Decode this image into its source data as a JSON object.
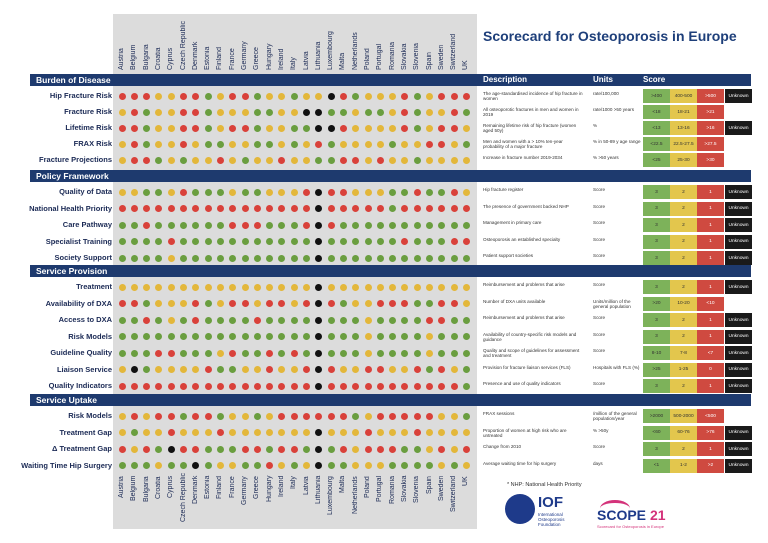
{
  "title": "Scorecard for Osteoporosis in Europe",
  "headers": {
    "description": "Description",
    "units": "Units",
    "score": "Score"
  },
  "countries": [
    "Austria",
    "Belgium",
    "Bulgaria",
    "Croatia",
    "Cyprus",
    "Czech Republic",
    "Denmark",
    "Estonia",
    "Finland",
    "France",
    "Germany",
    "Greece",
    "Hungary",
    "Ireland",
    "Italy",
    "Latvia",
    "Lithuania",
    "Luxembourg",
    "Malta",
    "Netherlands",
    "Poland",
    "Portugal",
    "Romania",
    "Slovakia",
    "Slovenia",
    "Spain",
    "Sweden",
    "Switzerland",
    "UK"
  ],
  "colors": {
    "green": "#6a9e3f",
    "yellow": "#e3b73a",
    "red": "#d9413a",
    "black": "#111111",
    "navy": "#1e3a6e",
    "score_green": "#7db25a",
    "score_yellow": "#e3c64d",
    "score_red": "#cf4a40"
  },
  "footnote": "* NHP: National Health Priority",
  "logos": {
    "iof": {
      "name": "IOF",
      "line1": "International",
      "line2": "Osteoporosis",
      "line3": "Foundation"
    },
    "scope": {
      "name": "SCOPE",
      "year": "21",
      "tagline": "Scorecard for Osteoporosis in Europe"
    }
  },
  "chart_data": {
    "type": "table",
    "title": "Scorecard for Osteoporosis in Europe",
    "legend": {
      "g": "green",
      "y": "yellow",
      "r": "red",
      "k": "black (unknown)"
    },
    "sections": [
      {
        "name": "Burden of Disease",
        "rows": [
          {
            "label": "Hip Fracture Risk",
            "desc": "The age-standardised incidence of hip fracture in women",
            "unit": "rate/100,000",
            "scores": [
              ">400",
              "400-500",
              ">500"
            ],
            "unknown": "Unknown",
            "values": "rrryyrrgyrrgyygyykrgyyyrgyrrr"
          },
          {
            "label": "Fracture Risk",
            "desc": "All osteoporotic fractures in men and women in 2019",
            "unit": "rate/1000 >50 years",
            "scores": [
              "<18",
              "18-21",
              ">21"
            ],
            "unknown": "",
            "values": "yrgyyrrgyyyggyykkggyggyrgyyrg"
          },
          {
            "label": "Lifetime Risk",
            "desc": "Remaining lifetime risk of hip fracture (women aged 50y)",
            "unit": "%",
            "scores": [
              "<13",
              "13-16",
              ">16"
            ],
            "unknown": "Unknown",
            "values": "rrgyyrrgyrrgyyggkkryyyyrgyrry"
          },
          {
            "label": "FRAX Risk",
            "desc": "Men and women with a > 10% ten-year probability of a major fracture",
            "unit": "% in 50-89 y age range",
            "scores": [
              "<22.5",
              "22.5-27.5",
              ">27.5"
            ],
            "unknown": "",
            "values": "yrgyyryggyyggygyrgyyyygyyrryg"
          },
          {
            "label": "Fracture Projections",
            "desc": "Increase in fracture number 2019-2034",
            "unit": "% >50 years",
            "scores": [
              "<25",
              "25-30",
              ">30"
            ],
            "unknown": "",
            "values": "yrrgygyyrygyyryyggrryryygyyyy"
          }
        ]
      },
      {
        "name": "Policy Framework",
        "rows": [
          {
            "label": "Quality of Data",
            "desc": "Hip fracture register",
            "unit": "Score",
            "scores": [
              "3",
              "2",
              "1"
            ],
            "unknown": "Unknown",
            "values": "yyggyrgggyggyyyrkrryyyggrggry"
          },
          {
            "label": "National Health Priority",
            "desc": "The presence of government backed NHP",
            "unit": "Score",
            "scores": [
              "3",
              "2",
              "1"
            ],
            "unknown": "Unknown",
            "values": "rrrrrrrrrrrrrrrrkrrrrrgrrrrrr"
          },
          {
            "label": "Care Pathway",
            "desc": "Management in primary care",
            "unit": "Score",
            "scores": [
              "3",
              "2",
              "1"
            ],
            "unknown": "Unknown",
            "values": "ggrggggggrrrgggrkrggggggggggg"
          },
          {
            "label": "Specialist Training",
            "desc": "Osteoporosis an established specialty",
            "unit": "Score",
            "scores": [
              "3",
              "2",
              "1"
            ],
            "unknown": "Unknown",
            "values": "ggggrgggggggggggkggggggrgggrr"
          },
          {
            "label": "Society Support",
            "desc": "Patient support societies",
            "unit": "Score",
            "scores": [
              "3",
              "2",
              "1"
            ],
            "unknown": "Unknown",
            "values": "ggggygggggggggggkgggggggggggg"
          }
        ]
      },
      {
        "name": "Service Provision",
        "rows": [
          {
            "label": "Treatment",
            "desc": "Reimbursement and problems that arise",
            "unit": "Score",
            "scores": [
              "3",
              "2",
              "1"
            ],
            "unknown": "Unknown",
            "values": "yyyyyyyyyyyyyyyykyyyyyyyyyyyy"
          },
          {
            "label": "Availability of DXA",
            "desc": "Number of DXA units available",
            "unit": "Units/million of the general population",
            "scores": [
              ">20",
              "10-20",
              "<10"
            ],
            "unknown": "",
            "values": "rrgyyyrgyrryrryrkrgyyrrrggrry"
          },
          {
            "label": "Access to DXA",
            "desc": "Reimbursement and problems that arise",
            "unit": "Score",
            "scores": [
              "3",
              "2",
              "1"
            ],
            "unknown": "Unknown",
            "values": "ggrgygrggggrggggkgggyggggrrgg"
          },
          {
            "label": "Risk Models",
            "desc": "Availability of country-specific risk models and guidance",
            "unit": "Score",
            "scores": [
              "3",
              "2",
              "1"
            ],
            "unknown": "Unknown",
            "values": "ggggggggggggggggkgggyggggyggg"
          },
          {
            "label": "Guideline Quality",
            "desc": "Quality and scope of guidelines for assessment and treatment",
            "unit": "Score",
            "scores": [
              "8-10",
              "7-8",
              "<7"
            ],
            "unknown": "Unknown",
            "values": "gggrrgggyrggrgrgkgggyggggyggg"
          },
          {
            "label": "Liaison Service",
            "desc": "Provision for fracture liaison services (FLS)",
            "unit": "Hospitals with FLS (%)",
            "scores": [
              ">25",
              "1-25",
              "0"
            ],
            "unknown": "Unknown",
            "values": "ykgyyyyrggyyryyrkryyrryyrgryg"
          },
          {
            "label": "Quality Indicators",
            "desc": "Presence and use of quality indicators",
            "unit": "Score",
            "scores": [
              "3",
              "2",
              "1"
            ],
            "unknown": "Unknown",
            "values": "rrrrrrrrrrrrrrrrkrrrrrrrrrrrg"
          }
        ]
      },
      {
        "name": "Service Uptake",
        "rows": [
          {
            "label": "Risk Models",
            "desc": "FRAX sessions",
            "unit": "/million of the general population/year",
            "scores": [
              ">2000",
              "500-2000",
              "<500"
            ],
            "unknown": "",
            "values": "yryrrgrrgyygyrrrrrrgyrrrrryyg"
          },
          {
            "label": "Treatment Gap",
            "desc": "Proportion of women at high risk who are untreated",
            "unit": "% >50y",
            "scores": [
              "<60",
              "60-76",
              ">76"
            ],
            "unknown": "Unknown",
            "values": "ygyyryyyryyyyyyykyyyryyyryyyy"
          },
          {
            "label": "Δ Treatment Gap",
            "desc": "Change from 2010",
            "unit": "Score",
            "scores": [
              "3",
              "2",
              "1"
            ],
            "unknown": "Unknown",
            "values": "ryrgkrrgggrrgrrgkgryrrrggyryr"
          },
          {
            "label": "Waiting Time Hip Surgery",
            "desc": "Average waiting time for hip surgery",
            "unit": "days",
            "scores": [
              "<1",
              "1-2",
              ">2"
            ],
            "unknown": "Unknown",
            "values": "gggyggkgyyggrygykggyyyggggygy"
          }
        ]
      }
    ]
  }
}
